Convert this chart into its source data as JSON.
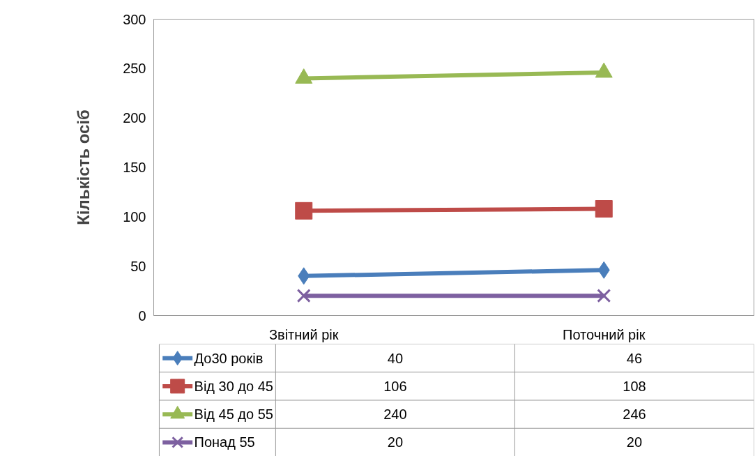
{
  "chart_data": {
    "type": "line",
    "ylabel": "Кількість осіб",
    "categories": [
      "Звітний рік",
      "Поточний рік"
    ],
    "series": [
      {
        "name": "До30 років",
        "color": "#4a7ebb",
        "values": [
          40,
          46
        ],
        "marker": "diamond"
      },
      {
        "name": "Від 30 до 45",
        "color": "#be4b48",
        "values": [
          106,
          108
        ],
        "marker": "square"
      },
      {
        "name": "Від 45 до 55",
        "color": "#98b954",
        "values": [
          240,
          246
        ],
        "marker": "triangle"
      },
      {
        "name": "Понад 55",
        "color": "#7d60a0",
        "values": [
          20,
          20
        ],
        "marker": "cross"
      }
    ],
    "ylim": [
      0,
      300
    ],
    "yticks": [
      0,
      50,
      100,
      150,
      200,
      250,
      300
    ],
    "grid": false,
    "legend": "bottom",
    "data_labels": true,
    "line_style": "solid"
  }
}
